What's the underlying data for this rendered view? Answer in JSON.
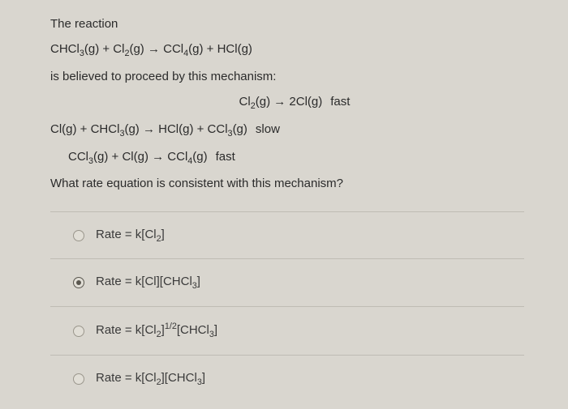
{
  "question": {
    "intro": "The reaction",
    "overall_reaction": "CHCl<sub>3</sub>(g) + Cl<sub>2</sub>(g) → CCl<sub>4</sub>(g) + HCl(g)",
    "mechanism_intro": "is believed to proceed by this mechanism:",
    "steps": [
      {
        "eq": "Cl<sub>2</sub>(g) → 2Cl(g)",
        "label": "fast",
        "align": "center"
      },
      {
        "eq": "Cl(g) + CHCl<sub>3</sub>(g) → HCl(g) + CCl<sub>3</sub>(g)",
        "label": "slow",
        "align": "left"
      },
      {
        "eq": "CCl<sub>3</sub>(g) + Cl(g) → CCl<sub>4</sub>(g)",
        "label": "fast",
        "align": "indent"
      }
    ],
    "prompt": "What rate equation is consistent with this mechanism?"
  },
  "options": [
    {
      "text": "Rate = k[Cl<sub>2</sub>]",
      "selected": false
    },
    {
      "text": "Rate = k[Cl][CHCl<sub>3</sub>]",
      "selected": true
    },
    {
      "text": "Rate = k[Cl<sub>2</sub>]<sup>1/2</sup>[CHCl<sub>3</sub>]",
      "selected": false
    },
    {
      "text": "Rate = k[Cl<sub>2</sub>][CHCl<sub>3</sub>]",
      "selected": false
    }
  ],
  "colors": {
    "background": "#d9d6cf",
    "text": "#2b2b2b",
    "divider": "#bfbcb4",
    "radio_border": "#9a968c",
    "radio_fill": "#5a574f"
  }
}
